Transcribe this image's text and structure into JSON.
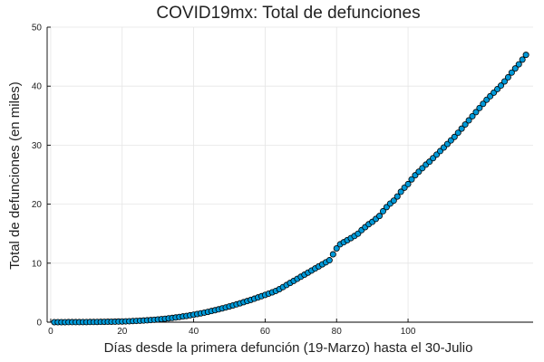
{
  "chart_data": {
    "type": "scatter",
    "title": "COVID19mx: Total de defunciones",
    "xlabel": "Días desde la primera defunción (19-Marzo) hasta el 30-Julio",
    "ylabel": "Total de defunciones (en miles)",
    "xlim": [
      -1,
      135
    ],
    "ylim": [
      0,
      50
    ],
    "x_ticks": [
      0,
      20,
      40,
      60,
      80,
      100
    ],
    "y_ticks": [
      0,
      10,
      20,
      30,
      40,
      50
    ],
    "grid": true,
    "legend": "none",
    "marker_color": "#0099d8",
    "series": [
      {
        "x": [
          1,
          2,
          3,
          4,
          5,
          6,
          7,
          8,
          9,
          10,
          11,
          12,
          13,
          14,
          15,
          16,
          17,
          18,
          19,
          20,
          21,
          22,
          23,
          24,
          25,
          26,
          27,
          28,
          29,
          30,
          31,
          32,
          33,
          34,
          35,
          36,
          37,
          38,
          39,
          40,
          41,
          42,
          43,
          44,
          45,
          46,
          47,
          48,
          49,
          50,
          51,
          52,
          53,
          54,
          55,
          56,
          57,
          58,
          59,
          60,
          61,
          62,
          63,
          64,
          65,
          66,
          67,
          68,
          69,
          70,
          71,
          72,
          73,
          74,
          75,
          76,
          77,
          78,
          79,
          80,
          81,
          82,
          83,
          84,
          85,
          86,
          87,
          88,
          89,
          90,
          91,
          92,
          93,
          94,
          95,
          96,
          97,
          98,
          99,
          100,
          101,
          102,
          103,
          104,
          105,
          106,
          107,
          108,
          109,
          110,
          111,
          112,
          113,
          114,
          115,
          116,
          117,
          118,
          119,
          120,
          121,
          122,
          123,
          124,
          125,
          126,
          127,
          128,
          129,
          130,
          131,
          132,
          133
        ],
        "y": [
          0.0,
          0.0,
          0.0,
          0.0,
          0.01,
          0.01,
          0.01,
          0.01,
          0.02,
          0.02,
          0.03,
          0.03,
          0.04,
          0.05,
          0.06,
          0.07,
          0.08,
          0.09,
          0.11,
          0.12,
          0.14,
          0.16,
          0.19,
          0.22,
          0.25,
          0.28,
          0.32,
          0.36,
          0.41,
          0.46,
          0.52,
          0.58,
          0.65,
          0.72,
          0.8,
          0.88,
          0.97,
          1.06,
          1.16,
          1.27,
          1.38,
          1.5,
          1.62,
          1.75,
          1.89,
          2.03,
          2.18,
          2.34,
          2.5,
          2.67,
          2.84,
          3.02,
          3.2,
          3.39,
          3.58,
          3.78,
          3.98,
          4.19,
          4.4,
          4.62,
          4.84,
          5.06,
          5.3,
          5.6,
          5.95,
          6.3,
          6.65,
          7.0,
          7.35,
          7.7,
          8.05,
          8.4,
          8.75,
          9.1,
          9.45,
          9.8,
          10.15,
          10.5,
          11.5,
          12.5,
          13.2,
          13.55,
          13.9,
          14.25,
          14.6,
          15.0,
          15.6,
          16.1,
          16.6,
          17.0,
          17.5,
          18.0,
          18.8,
          19.5,
          20.1,
          20.6,
          21.3,
          22.1,
          22.8,
          23.4,
          24.2,
          24.9,
          25.5,
          26.1,
          26.7,
          27.2,
          27.8,
          28.4,
          29.0,
          29.6,
          30.2,
          30.8,
          31.4,
          32.1,
          32.8,
          33.5,
          34.2,
          34.9,
          35.6,
          36.3,
          37.0,
          37.7,
          38.3,
          38.9,
          39.5,
          40.1,
          40.8,
          41.5,
          42.3,
          43.0,
          43.7,
          44.5,
          45.3
        ]
      }
    ]
  }
}
